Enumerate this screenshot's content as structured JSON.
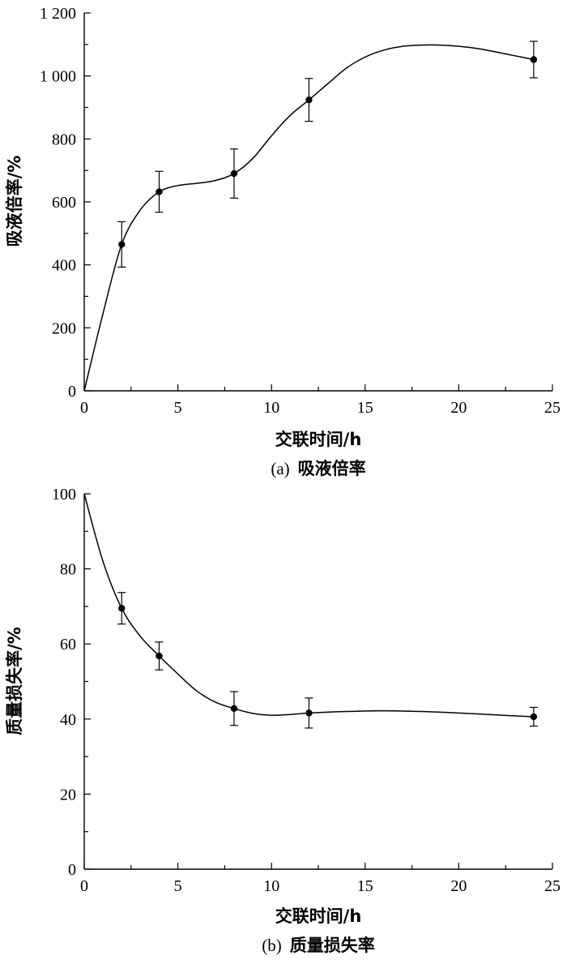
{
  "chart_data": [
    {
      "type": "line",
      "caption_prefix": "(a)",
      "caption": "吸液倍率",
      "xlabel": "交联时间/h",
      "ylabel": "吸液倍率/%",
      "xlim": [
        0,
        25
      ],
      "ylim": [
        0,
        1200
      ],
      "xticks": [
        0,
        5,
        10,
        15,
        20,
        25
      ],
      "xtick_labels": [
        "0",
        "5",
        "10",
        "15",
        "20",
        "25"
      ],
      "yticks": [
        0,
        200,
        400,
        600,
        800,
        1000,
        1200
      ],
      "ytick_labels": [
        "0",
        "200",
        "400",
        "600",
        "800",
        "1 000",
        "1 200"
      ],
      "grid": false,
      "series": [
        {
          "x": [
            0,
            2,
            4,
            8,
            12,
            24
          ],
          "y": [
            0,
            465,
            632,
            690,
            924,
            1052
          ],
          "error": [
            0,
            72,
            65,
            78,
            68,
            58
          ]
        }
      ],
      "fit_curve": {
        "x": [
          0,
          1,
          2,
          3,
          4,
          5,
          6,
          7,
          8,
          9,
          10,
          11,
          12,
          13,
          14,
          15,
          16,
          17,
          18,
          19,
          20,
          21,
          22,
          23,
          24
        ],
        "y": [
          0,
          245,
          465,
          575,
          632,
          652,
          659,
          668,
          690,
          738,
          810,
          875,
          924,
          975,
          1025,
          1060,
          1082,
          1094,
          1098,
          1098,
          1094,
          1087,
          1076,
          1064,
          1052
        ]
      },
      "colors": {
        "line": "#000000",
        "marker": "#000000"
      }
    },
    {
      "type": "line",
      "caption_prefix": "(b)",
      "caption": "质量损失率",
      "xlabel": "交联时间/h",
      "ylabel": "质量损失率/%",
      "xlim": [
        0,
        25
      ],
      "ylim": [
        0,
        100
      ],
      "xticks": [
        0,
        5,
        10,
        15,
        20,
        25
      ],
      "xtick_labels": [
        "0",
        "5",
        "10",
        "15",
        "20",
        "25"
      ],
      "yticks": [
        0,
        20,
        40,
        60,
        80,
        100
      ],
      "ytick_labels": [
        "0",
        "20",
        "40",
        "60",
        "80",
        "100"
      ],
      "grid": false,
      "series": [
        {
          "x": [
            0,
            2,
            4,
            8,
            12,
            24
          ],
          "y": [
            100,
            69.5,
            56.8,
            42.8,
            41.6,
            40.6
          ],
          "error": [
            0,
            4.2,
            3.7,
            4.5,
            4.0,
            2.5
          ]
        }
      ],
      "fit_curve": {
        "x": [
          0,
          1,
          2,
          3,
          4,
          5,
          6,
          7,
          8,
          9,
          10,
          11,
          12,
          14,
          16,
          18,
          20,
          22,
          24
        ],
        "y": [
          100,
          82,
          69.5,
          62,
          56.8,
          52,
          47.5,
          44.5,
          42.8,
          41.5,
          41.0,
          41.2,
          41.6,
          42.0,
          42.2,
          42.0,
          41.6,
          41.1,
          40.6
        ]
      },
      "colors": {
        "line": "#000000",
        "marker": "#000000"
      }
    }
  ]
}
